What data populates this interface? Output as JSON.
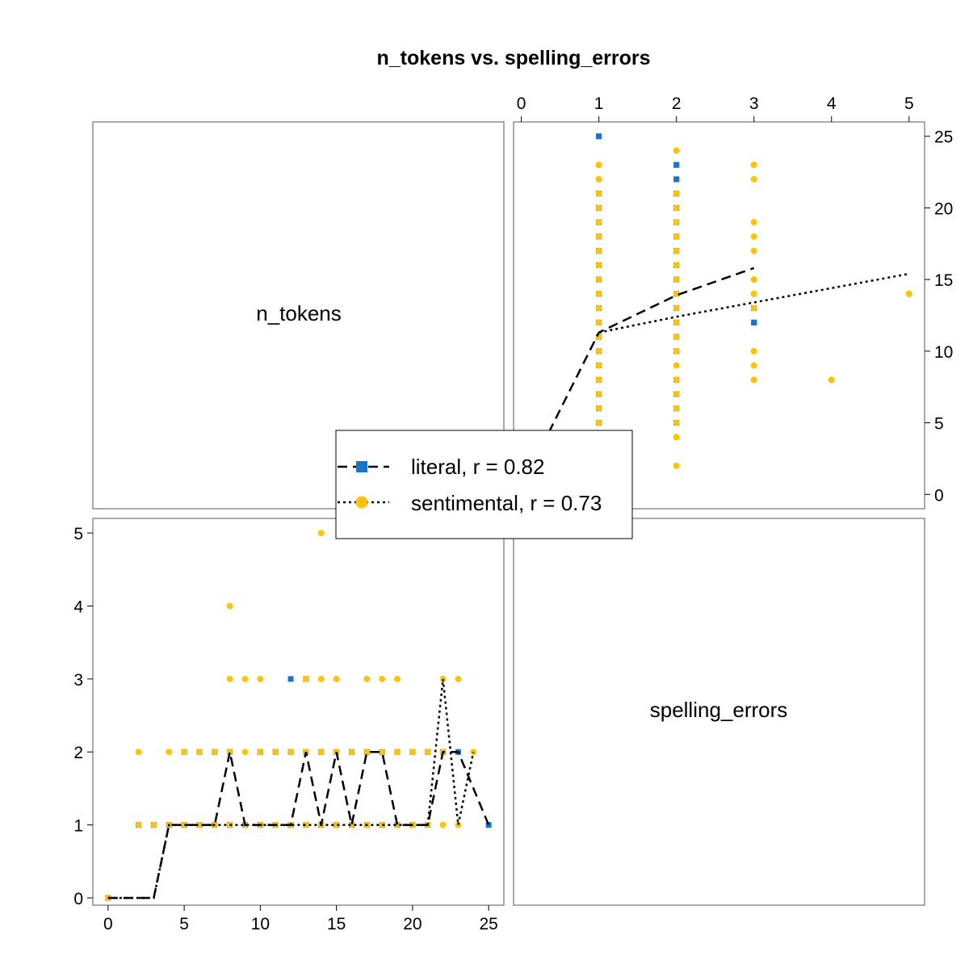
{
  "chart_data": {
    "type": "scatter",
    "title": "n_tokens vs. spelling_errors",
    "variables": [
      "n_tokens",
      "spelling_errors"
    ],
    "axes": {
      "n_tokens": {
        "range": [
          -1,
          26
        ],
        "ticks": [
          0,
          5,
          10,
          15,
          20,
          25
        ]
      },
      "spelling_errors": {
        "range": [
          -0.1,
          5.2
        ],
        "ticks": [
          0,
          1,
          2,
          3,
          4,
          5
        ]
      }
    },
    "legend": {
      "placement": "center",
      "entries": [
        {
          "label": "literal, r = 0.82",
          "series": "literal"
        },
        {
          "label": "sentimental, r = 0.73",
          "series": "sentimental"
        }
      ]
    },
    "colors": {
      "literal": "#1874CD",
      "sentimental": "#FFC20A",
      "line": "#000000"
    },
    "series": [
      {
        "name": "literal",
        "marker": "square",
        "line_style": "dashed",
        "points": [
          [
            0,
            0
          ],
          [
            2,
            1
          ],
          [
            3,
            1
          ],
          [
            4,
            1
          ],
          [
            5,
            1
          ],
          [
            5,
            2
          ],
          [
            6,
            1
          ],
          [
            6,
            2
          ],
          [
            7,
            1
          ],
          [
            7,
            2
          ],
          [
            8,
            1
          ],
          [
            8,
            2
          ],
          [
            9,
            1
          ],
          [
            10,
            1
          ],
          [
            10,
            2
          ],
          [
            11,
            1
          ],
          [
            11,
            2
          ],
          [
            12,
            1
          ],
          [
            12,
            2
          ],
          [
            12,
            3
          ],
          [
            13,
            1
          ],
          [
            13,
            2
          ],
          [
            13,
            3
          ],
          [
            14,
            1
          ],
          [
            14,
            2
          ],
          [
            15,
            1
          ],
          [
            15,
            2
          ],
          [
            16,
            1
          ],
          [
            16,
            2
          ],
          [
            17,
            1
          ],
          [
            17,
            2
          ],
          [
            18,
            1
          ],
          [
            18,
            2
          ],
          [
            19,
            1
          ],
          [
            19,
            2
          ],
          [
            20,
            1
          ],
          [
            20,
            2
          ],
          [
            21,
            1
          ],
          [
            21,
            2
          ],
          [
            22,
            2
          ],
          [
            23,
            2
          ],
          [
            25,
            1
          ]
        ],
        "smooth_x": [
          0,
          1,
          2,
          3,
          4,
          5,
          6,
          7,
          8,
          9,
          10,
          11,
          12,
          13,
          14,
          15,
          16,
          17,
          18,
          19,
          20,
          21,
          22,
          23,
          24,
          25
        ],
        "smooth_y": [
          0,
          0,
          0,
          0,
          1,
          1,
          1,
          1,
          2,
          1,
          1,
          1,
          1,
          2,
          1,
          2,
          1,
          2,
          2,
          1,
          1,
          1,
          2,
          2,
          1.5,
          1
        ]
      },
      {
        "name": "sentimental",
        "marker": "circle",
        "line_style": "dotted",
        "points": [
          [
            0,
            0
          ],
          [
            2,
            1
          ],
          [
            2,
            2
          ],
          [
            3,
            1
          ],
          [
            4,
            1
          ],
          [
            4,
            2
          ],
          [
            5,
            1
          ],
          [
            5,
            2
          ],
          [
            6,
            1
          ],
          [
            6,
            2
          ],
          [
            7,
            1
          ],
          [
            7,
            2
          ],
          [
            8,
            1
          ],
          [
            8,
            2
          ],
          [
            8,
            3
          ],
          [
            8,
            4
          ],
          [
            9,
            1
          ],
          [
            9,
            2
          ],
          [
            9,
            3
          ],
          [
            10,
            1
          ],
          [
            10,
            2
          ],
          [
            10,
            3
          ],
          [
            11,
            1
          ],
          [
            11,
            2
          ],
          [
            12,
            1
          ],
          [
            12,
            2
          ],
          [
            13,
            1
          ],
          [
            13,
            2
          ],
          [
            13,
            3
          ],
          [
            14,
            1
          ],
          [
            14,
            2
          ],
          [
            14,
            3
          ],
          [
            14,
            5
          ],
          [
            15,
            1
          ],
          [
            15,
            2
          ],
          [
            15,
            3
          ],
          [
            16,
            1
          ],
          [
            16,
            2
          ],
          [
            17,
            1
          ],
          [
            17,
            2
          ],
          [
            17,
            3
          ],
          [
            18,
            1
          ],
          [
            18,
            2
          ],
          [
            18,
            3
          ],
          [
            19,
            1
          ],
          [
            19,
            2
          ],
          [
            19,
            3
          ],
          [
            20,
            1
          ],
          [
            20,
            2
          ],
          [
            21,
            1
          ],
          [
            21,
            2
          ],
          [
            22,
            1
          ],
          [
            22,
            2
          ],
          [
            22,
            3
          ],
          [
            23,
            1
          ],
          [
            23,
            3
          ],
          [
            24,
            2
          ]
        ],
        "smooth_x": [
          0,
          1,
          2,
          3,
          4,
          5,
          6,
          7,
          8,
          9,
          10,
          11,
          12,
          13,
          14,
          15,
          16,
          17,
          18,
          19,
          20,
          21,
          22,
          23,
          24
        ],
        "smooth_y": [
          0,
          0,
          0,
          0,
          1,
          1,
          1,
          1,
          1,
          1,
          1,
          1,
          1,
          1,
          1,
          1,
          1,
          1,
          1,
          1,
          1,
          1,
          3,
          1,
          2
        ]
      }
    ],
    "upper_smooth": {
      "literal": {
        "x": [
          0,
          1,
          2,
          3
        ],
        "y": [
          0.5,
          11.3,
          13.9,
          15.8
        ]
      },
      "sentimental": {
        "x": [
          1,
          2,
          3,
          5
        ],
        "y": [
          11.3,
          12.4,
          13.4,
          15.4
        ]
      }
    }
  }
}
